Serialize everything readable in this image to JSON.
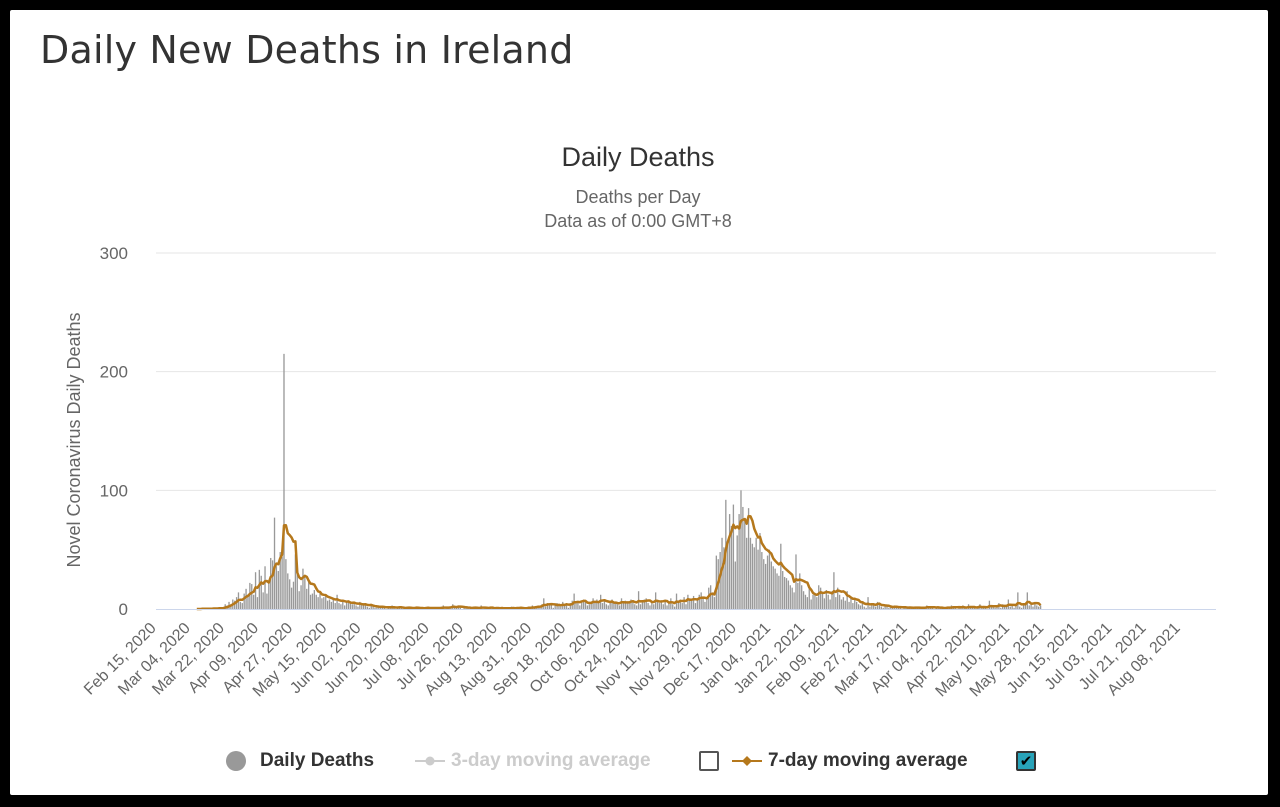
{
  "page": {
    "title": "Daily New Deaths in Ireland"
  },
  "chart_data": {
    "type": "bar",
    "title": "Daily Deaths",
    "subtitle_line1": "Deaths per Day",
    "subtitle_line2": "Data as of 0:00 GMT+8",
    "ylabel": "Novel Coronavirus Daily Deaths",
    "xlabel": "",
    "ylim": [
      0,
      300
    ],
    "yticks": [
      0,
      100,
      200,
      300
    ],
    "grid": true,
    "x_start_date": "2020-02-15",
    "x_end_date": "2021-08-26",
    "xtick_labels": [
      "Feb 15, 2020",
      "Mar 04, 2020",
      "Mar 22, 2020",
      "Apr 09, 2020",
      "Apr 27, 2020",
      "May 15, 2020",
      "Jun 02, 2020",
      "Jun 20, 2020",
      "Jul 08, 2020",
      "Jul 26, 2020",
      "Aug 13, 2020",
      "Aug 31, 2020",
      "Sep 18, 2020",
      "Oct 06, 2020",
      "Oct 24, 2020",
      "Nov 11, 2020",
      "Nov 29, 2020",
      "Dec 17, 2020",
      "Jan 04, 2021",
      "Jan 22, 2021",
      "Feb 09, 2021",
      "Feb 27, 2021",
      "Mar 17, 2021",
      "Apr 04, 2021",
      "Apr 22, 2021",
      "May 10, 2021",
      "May 28, 2021",
      "Jun 15, 2021",
      "Jul 03, 2021",
      "Jul 21, 2021",
      "Aug 08, 2021"
    ],
    "series": [
      {
        "name": "Daily Deaths",
        "type": "bar",
        "color": "#999999",
        "daily_values_note": "one value per day from Feb 15, 2020",
        "values": [
          0,
          0,
          0,
          0,
          0,
          0,
          0,
          0,
          0,
          0,
          0,
          0,
          0,
          0,
          0,
          0,
          0,
          0,
          0,
          0,
          0,
          0,
          0,
          0,
          1,
          0,
          0,
          1,
          0,
          0,
          1,
          1,
          0,
          1,
          1,
          1,
          4,
          3,
          6,
          4,
          8,
          7,
          10,
          14,
          6,
          5,
          13,
          17,
          12,
          22,
          21,
          12,
          31,
          10,
          33,
          28,
          14,
          36,
          13,
          22,
          43,
          41,
          77,
          36,
          32,
          48,
          44,
          215,
          42,
          30,
          25,
          18,
          23,
          46,
          30,
          15,
          20,
          34,
          28,
          17,
          24,
          12,
          13,
          16,
          12,
          10,
          14,
          9,
          10,
          11,
          7,
          8,
          6,
          9,
          5,
          12,
          5,
          4,
          8,
          3,
          6,
          7,
          5,
          4,
          5,
          3,
          2,
          6,
          4,
          3,
          5,
          2,
          1,
          3,
          2,
          1,
          2,
          3,
          1,
          1,
          2,
          0,
          1,
          2,
          3,
          1,
          0,
          2,
          1,
          1,
          0,
          1,
          2,
          1,
          1,
          0,
          1,
          2,
          0,
          1,
          1,
          0,
          1,
          2,
          1,
          0,
          1,
          1,
          0,
          1,
          2,
          3,
          0,
          1,
          1,
          2,
          4,
          2,
          1,
          3,
          1,
          0,
          1,
          2,
          1,
          0,
          1,
          2,
          1,
          0,
          1,
          3,
          0,
          1,
          1,
          0,
          2,
          1,
          0,
          1,
          1,
          0,
          1,
          0,
          1,
          0,
          1,
          2,
          1,
          0,
          1,
          1,
          1,
          0,
          1,
          1,
          2,
          1,
          3,
          1,
          2,
          3,
          2,
          4,
          9,
          2,
          5,
          3,
          4,
          1,
          3,
          5,
          4,
          2,
          6,
          3,
          5,
          1,
          5,
          7,
          13,
          6,
          5,
          3,
          6,
          8,
          7,
          3,
          4,
          5,
          9,
          6,
          8,
          5,
          12,
          5,
          7,
          4,
          3,
          5,
          8,
          6,
          5,
          4,
          3,
          9,
          5,
          7,
          6,
          5,
          8,
          6,
          4,
          3,
          15,
          4,
          6,
          8,
          9,
          5,
          3,
          6,
          4,
          14,
          7,
          5,
          6,
          4,
          8,
          3,
          5,
          9,
          4,
          2,
          13,
          6,
          8,
          5,
          10,
          4,
          12,
          9,
          7,
          11,
          5,
          8,
          12,
          14,
          10,
          6,
          8,
          18,
          20,
          14,
          10,
          45,
          42,
          48,
          60,
          52,
          92,
          55,
          80,
          70,
          88,
          40,
          62,
          80,
          100,
          86,
          75,
          60,
          85,
          60,
          55,
          52,
          60,
          50,
          64,
          48,
          42,
          38,
          45,
          50,
          40,
          36,
          34,
          30,
          28,
          55,
          32,
          27,
          26,
          24,
          20,
          18,
          14,
          46,
          22,
          30,
          20,
          15,
          12,
          10,
          18,
          8,
          12,
          13,
          10,
          20,
          18,
          14,
          9,
          16,
          12,
          8,
          15,
          31,
          10,
          18,
          12,
          8,
          10,
          7,
          15,
          6,
          9,
          5,
          8,
          6,
          4,
          3,
          5,
          2,
          1,
          10,
          2,
          5,
          3,
          2,
          6,
          4,
          2,
          1,
          3,
          2,
          1,
          2,
          1,
          3,
          1,
          2,
          1,
          0,
          2,
          1,
          1,
          2,
          1,
          0,
          1,
          2,
          1,
          0,
          2,
          1,
          3,
          1,
          2,
          1,
          0,
          1,
          2,
          1,
          1,
          0,
          1,
          2,
          1,
          3,
          2,
          1,
          0,
          2,
          1,
          3,
          1,
          0,
          4,
          1,
          2,
          1,
          0,
          2,
          4,
          1,
          2,
          1,
          0,
          7,
          2,
          3,
          1,
          2,
          5,
          1,
          4,
          2,
          3,
          8,
          2,
          4,
          1,
          3,
          14,
          2,
          1,
          3,
          4,
          14,
          3,
          5,
          2,
          4,
          3,
          2,
          3
        ]
      },
      {
        "name": "3-day moving average",
        "type": "line",
        "color": "#cccccc",
        "visible": false
      },
      {
        "name": "7-day moving average",
        "type": "line",
        "color": "#b5781c",
        "visible": true
      }
    ],
    "legend": {
      "placement": "bottom"
    }
  },
  "legend": {
    "daily_label": "Daily Deaths",
    "ma3_label": "3-day moving average",
    "ma7_label": "7-day moving average",
    "ma3_checked": false,
    "ma7_checked": true,
    "check_glyph": "✔"
  },
  "colors": {
    "bar": "#999999",
    "ma7": "#b5781c",
    "ma3_disabled": "#cccccc",
    "grid": "#e6e6e6",
    "baseline": "#ccd6eb",
    "checkbox_on": "#28a3b9"
  }
}
